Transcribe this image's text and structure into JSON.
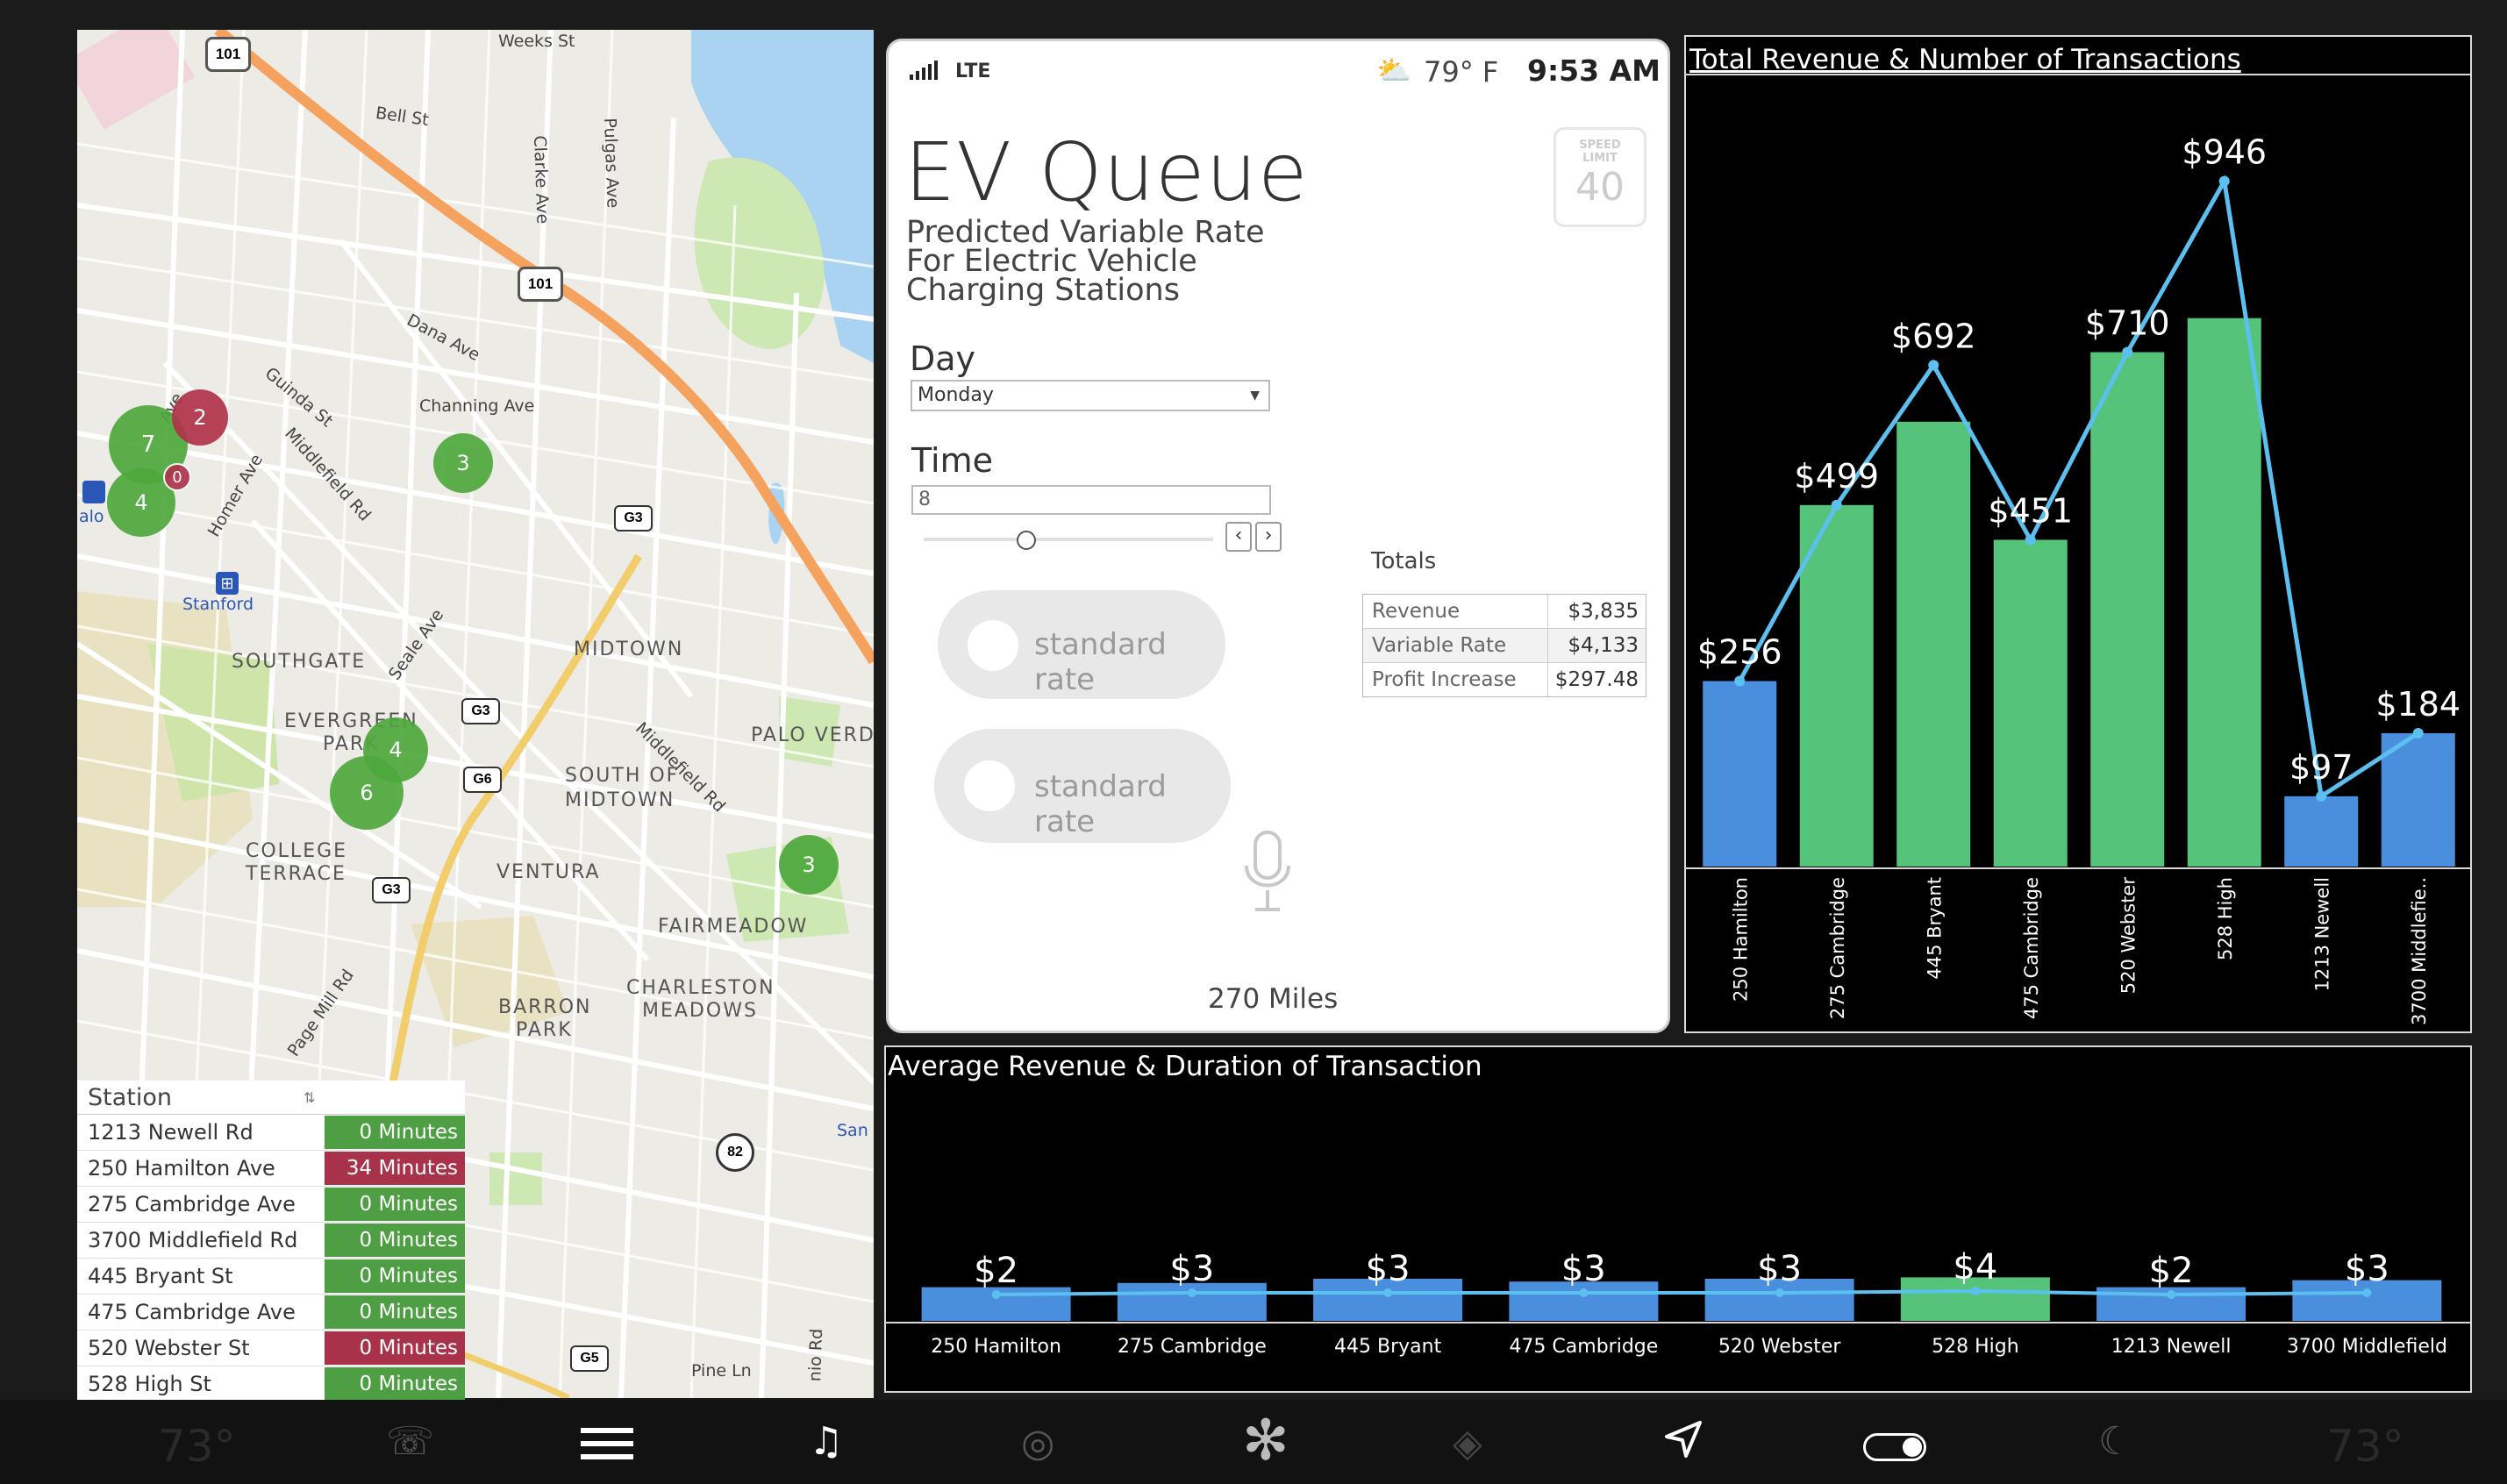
{
  "map": {
    "area_labels": [
      "SOUTHGATE",
      "MIDTOWN",
      "EVERGREEN",
      "PARK",
      "SOUTH OF",
      "MIDTOWN",
      "PALO VERD",
      "COLLEGE",
      "TERRACE",
      "VENTURA",
      "FAIRMEADOW",
      "CHARLESTON",
      "MEADOWS",
      "BARRON",
      "PARK"
    ],
    "street_labels": [
      "Weeks St",
      "Bell St",
      "Clarke Ave",
      "Pulgas Ave",
      "Dana Ave",
      "Channing Ave",
      "Guinda St",
      "Middlefield Rd",
      "Homer Ave",
      "Ave",
      "Stanford",
      "Seale Ave",
      "Middlefield Rd",
      "Page Mill Rd",
      "Pine Ln",
      "nio Rd",
      "San",
      "alo"
    ],
    "route_shields": [
      "101",
      "101",
      "G3",
      "G3",
      "G6",
      "G3",
      "82",
      "G5"
    ],
    "clusters": [
      {
        "count": "7",
        "color": "green"
      },
      {
        "count": "2",
        "color": "red"
      },
      {
        "count": "4",
        "color": "green"
      },
      {
        "count": "0",
        "color": "red"
      },
      {
        "count": "3",
        "color": "green"
      },
      {
        "count": "4",
        "color": "green"
      },
      {
        "count": "6",
        "color": "green"
      },
      {
        "count": "3",
        "color": "green"
      }
    ]
  },
  "station_table": {
    "header": "Station",
    "rows": [
      {
        "name": "1213 Newell Rd",
        "minutes": "0 Minutes",
        "status": "green"
      },
      {
        "name": "250 Hamilton Ave",
        "minutes": "34 Minutes",
        "status": "red"
      },
      {
        "name": "275 Cambridge Ave",
        "minutes": "0 Minutes",
        "status": "green"
      },
      {
        "name": "3700 Middlefield Rd",
        "minutes": "0 Minutes",
        "status": "green"
      },
      {
        "name": "445 Bryant St",
        "minutes": "0 Minutes",
        "status": "green"
      },
      {
        "name": "475 Cambridge Ave",
        "minutes": "0 Minutes",
        "status": "green"
      },
      {
        "name": "520 Webster St",
        "minutes": "0 Minutes",
        "status": "red"
      },
      {
        "name": "528 High St",
        "minutes": "0 Minutes",
        "status": "green"
      }
    ]
  },
  "status_bar": {
    "signal": "LTE",
    "weather": "79° F",
    "time": "9:53 AM"
  },
  "app": {
    "title": "EV Queue",
    "subtitle_lines": [
      "Predicted Variable Rate",
      "For Electric Vehicle",
      "Charging Stations"
    ],
    "speed_limit": {
      "label1": "SPEED",
      "label2": "LIMIT",
      "value": "40"
    },
    "day": {
      "label": "Day",
      "value": "Monday"
    },
    "time": {
      "label": "Time",
      "value": "8",
      "slider_fraction": 0.35
    },
    "toggles": [
      "standard rate",
      "standard rate"
    ],
    "range": "270 Miles"
  },
  "totals": {
    "title": "Totals",
    "rows": [
      {
        "label": "Revenue",
        "value": "$3,835"
      },
      {
        "label": "Variable Rate",
        "value": "$4,133"
      },
      {
        "label": "Profit Increase",
        "value": "$297.48"
      }
    ]
  },
  "colors": {
    "blue": "#4a8fdd",
    "green": "#55c47a",
    "line": "#5bc0f0",
    "red_status": "#a8324a",
    "green_status": "#4e9e44"
  },
  "chart_data": [
    {
      "type": "bar",
      "title": "Total Revenue & Number of Transactions",
      "categories": [
        "250 Hamilton",
        "275 Cambridge",
        "445 Bryant",
        "475 Cambridge",
        "520 Webster",
        "528 High",
        "1213 Newell",
        "3700 Middlefie.."
      ],
      "series": [
        {
          "values": [
            256,
            499,
            614,
            451,
            710,
            757,
            97,
            184
          ],
          "colors": [
            "blue",
            "green",
            "green",
            "green",
            "green",
            "green",
            "blue",
            "blue"
          ]
        },
        {
          "values": [
            256,
            499,
            692,
            451,
            710,
            946,
            97,
            184
          ],
          "labels": [
            "$256",
            "$499",
            "$692",
            "$451",
            "$710",
            "$946",
            "$97",
            "$184"
          ]
        }
      ],
      "ylim": [
        0,
        1000
      ]
    },
    {
      "type": "bar",
      "title": "Average Revenue & Duration of Transaction",
      "categories": [
        "250 Hamilton",
        "275 Cambridge",
        "445 Bryant",
        "475 Cambridge",
        "520 Webster",
        "528 High",
        "1213 Newell",
        "3700 Middlefield"
      ],
      "series": [
        {
          "values": [
            2.4,
            2.7,
            3.0,
            2.8,
            3.0,
            3.1,
            2.4,
            2.9
          ],
          "colors": [
            "blue",
            "blue",
            "blue",
            "blue",
            "blue",
            "green",
            "blue",
            "blue"
          ]
        },
        {
          "values": [
            2,
            3,
            3,
            3,
            3,
            4,
            2,
            3
          ],
          "labels": [
            "$2",
            "$3",
            "$3",
            "$3",
            "$3",
            "$4",
            "$2",
            "$3"
          ]
        }
      ]
    }
  ],
  "bottom_bar": {
    "left_temp": "73°",
    "right_temp": "73°"
  }
}
